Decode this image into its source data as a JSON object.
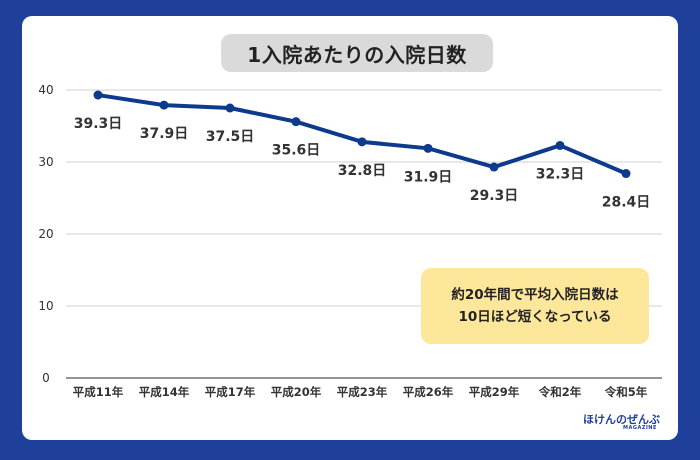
{
  "chart_data": {
    "type": "line",
    "title": "1入院あたりの入院日数",
    "categories": [
      "平成11年",
      "平成14年",
      "平成17年",
      "平成20年",
      "平成23年",
      "平成26年",
      "平成29年",
      "令和2年",
      "令和5年"
    ],
    "series": [
      {
        "values": [
          39.3,
          37.9,
          37.5,
          35.6,
          32.8,
          31.9,
          29.3,
          32.3,
          28.4
        ]
      }
    ],
    "data_labels": [
      "39.3日",
      "37.9日",
      "37.5日",
      "35.6日",
      "32.8日",
      "31.9日",
      "29.3日",
      "32.3日",
      "28.4日"
    ],
    "ylim": [
      0,
      40
    ],
    "yticks": [
      0,
      10,
      20,
      30,
      40
    ],
    "grid": true,
    "line_color": "#0d3a8c"
  },
  "note": {
    "line1": "約20年間で平均入院日数は",
    "line2": "10日ほど短くなっている"
  },
  "logo": {
    "text": "ほけんのぜんぶ",
    "sub": "MAGAZINE"
  },
  "colors": {
    "background": "#1e3f9a",
    "note_bg": "#fde79a",
    "title_bg": "#dadada"
  }
}
